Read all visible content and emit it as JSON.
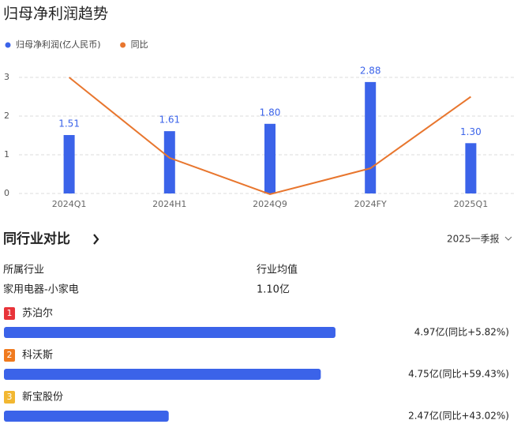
{
  "chart_data": {
    "type": "bar-line",
    "title": "归母净利润趋势",
    "categories": [
      "2024Q1",
      "2024H1",
      "2024Q9",
      "2024FY",
      "2025Q1"
    ],
    "series": [
      {
        "name": "归母净利润(亿人民币)",
        "color": "#3b63e9",
        "type": "bar",
        "values": [
          1.51,
          1.61,
          1.8,
          2.88,
          1.3
        ],
        "value_labels": [
          "1.51",
          "1.61",
          "1.80",
          "2.88",
          "1.30"
        ]
      },
      {
        "name": "同比",
        "color": "#e8762e",
        "type": "line",
        "axis": "y2",
        "values": [
          3.0,
          0.92,
          -0.02,
          0.65,
          2.5
        ]
      }
    ],
    "ylim": [
      0,
      3
    ],
    "yticks": [
      0,
      1,
      2,
      3
    ],
    "y2lim": [
      0,
      3
    ],
    "grid": true
  },
  "peer": {
    "title": "同行业对比",
    "period": "2025一季报",
    "header": [
      "所属行业",
      "行业均值"
    ],
    "row": [
      "家用电器-小家电",
      "1.10亿"
    ],
    "ranking": [
      {
        "rank": 1,
        "name": "苏泊尔",
        "value": 4.97,
        "label": "4.97亿(同比+5.82%)",
        "color": "#e8343a"
      },
      {
        "rank": 2,
        "name": "科沃斯",
        "value": 4.75,
        "label": "4.75亿(同比+59.43%)",
        "color": "#f07a1e"
      },
      {
        "rank": 3,
        "name": "新宝股份",
        "value": 2.47,
        "label": "2.47亿(同比+43.02%)",
        "color": "#f2b731"
      }
    ]
  }
}
